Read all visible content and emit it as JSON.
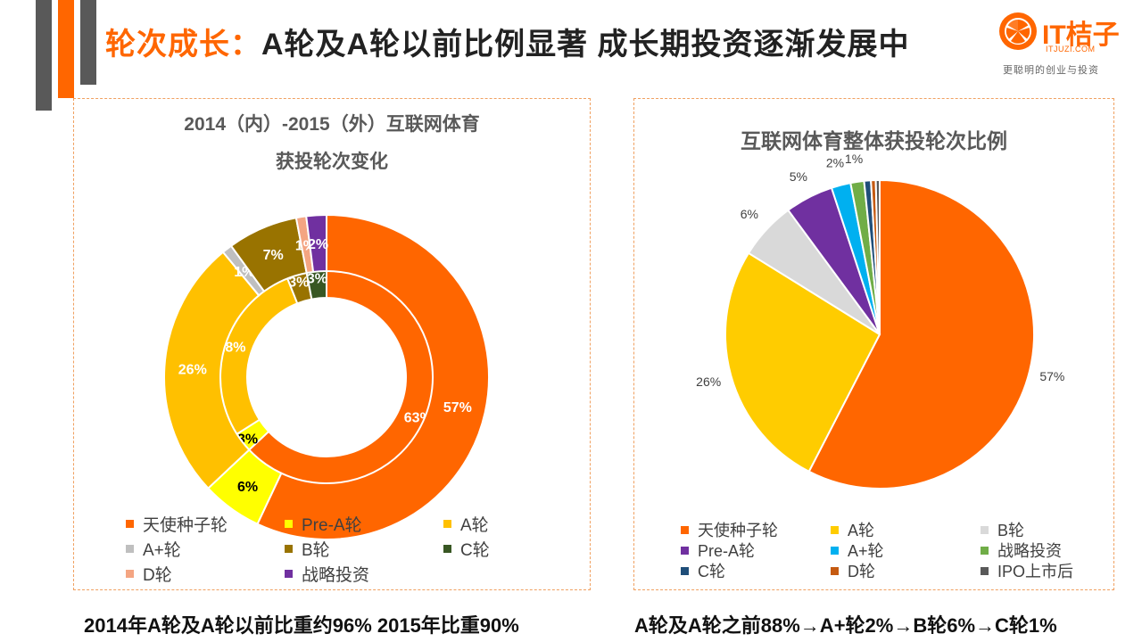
{
  "header": {
    "title_highlight": "轮次成长：",
    "title_rest": "A轮及A轮以前比例显著   成长期投资逐渐发展中"
  },
  "logo": {
    "name": "IT桔子",
    "domain": "ITJUZI.COM",
    "tagline": "更聪明的创业与投资"
  },
  "colors": {
    "accent": "#ff6600",
    "deco_gray": "#595959"
  },
  "chart_data": [
    {
      "type": "doughnut",
      "title_line1": "2014（内）-2015（外）互联网体育",
      "title_line2": "获投轮次变化",
      "categories": [
        "天使种子轮",
        "Pre-A轮",
        "A轮",
        "A+轮",
        "B轮",
        "C轮",
        "D轮",
        "战略投资"
      ],
      "colors": [
        "#ff6600",
        "#ffff00",
        "#ffc000",
        "#bfbfbf",
        "#997300",
        "#385723",
        "#f4a582",
        "#7030a0"
      ],
      "series": [
        {
          "name": "2014",
          "ring": "inner",
          "values": [
            63,
            3,
            28,
            0,
            3,
            3,
            0,
            0
          ],
          "labels": [
            "63%",
            "3%",
            "28%",
            "",
            "3%",
            "3%",
            "",
            ""
          ]
        },
        {
          "name": "2015",
          "ring": "outer",
          "values": [
            57,
            6,
            26,
            1,
            7,
            0,
            1,
            2
          ],
          "labels": [
            "57%",
            "6%",
            "26%",
            "1%",
            "7%",
            "",
            "1%",
            "2%"
          ]
        }
      ]
    },
    {
      "type": "pie",
      "title": "互联网体育整体获投轮次比例",
      "categories": [
        "天使种子轮",
        "A轮",
        "B轮",
        "Pre-A轮",
        "A+轮",
        "战略投资",
        "C轮",
        "D轮",
        "IPO上市后"
      ],
      "colors": [
        "#ff6600",
        "#ffcc00",
        "#d9d9d9",
        "#7030a0",
        "#00b0f0",
        "#70ad47",
        "#1f4e79",
        "#c55a11",
        "#595959"
      ],
      "values": [
        57,
        26,
        6,
        5,
        2,
        1.4,
        0.7,
        0.5,
        0.4
      ],
      "labels": [
        "57%",
        "26%",
        "6%",
        "5%",
        "2%",
        "1%",
        "",
        "",
        ""
      ]
    }
  ],
  "captions": {
    "left": "2014年A轮及A轮以前比重约96%  2015年比重90%",
    "right": "A轮及A轮之前88%→A+轮2%→B轮6%→C轮1%"
  }
}
